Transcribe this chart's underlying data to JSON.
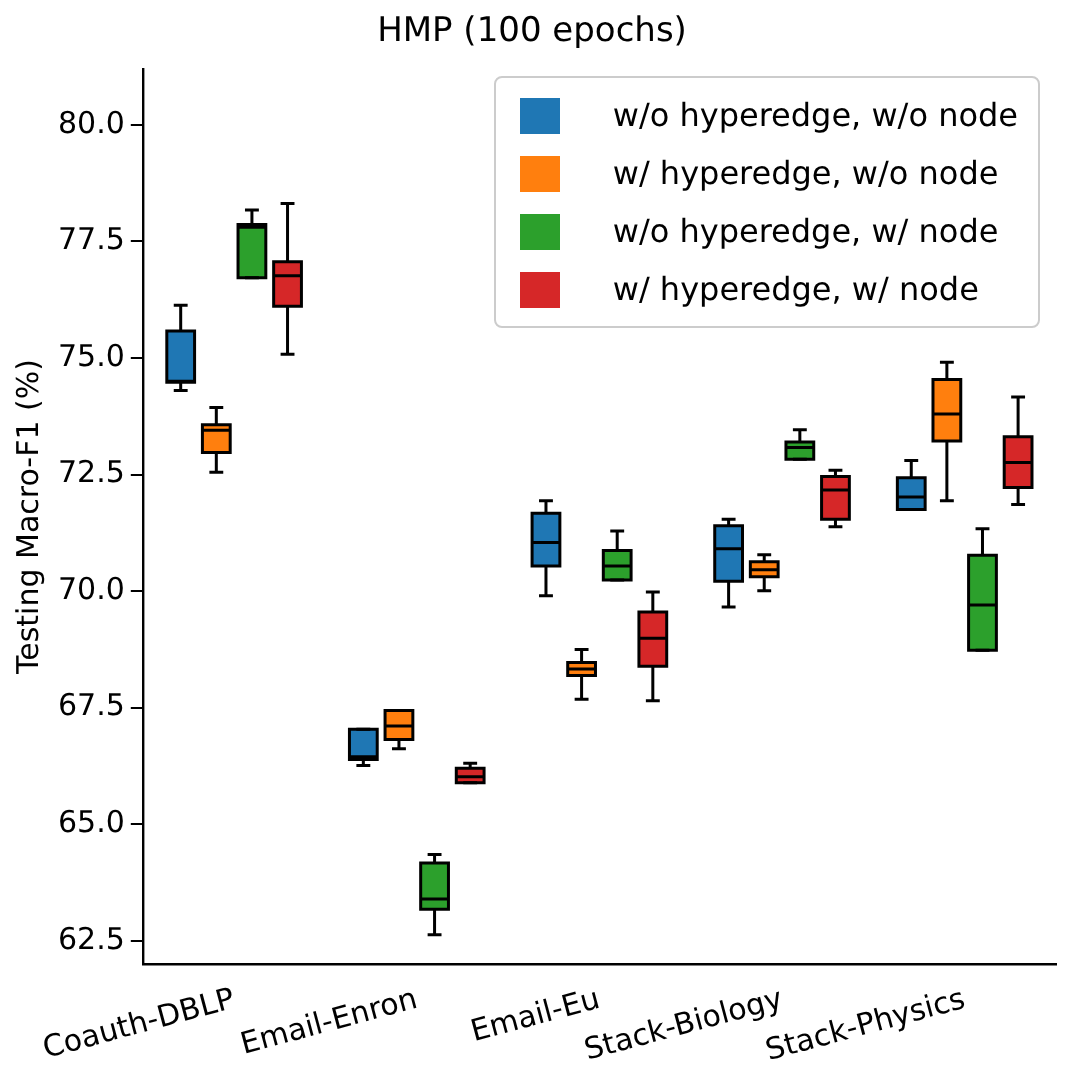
{
  "chart_data": {
    "type": "box",
    "title": "HMP (100 epochs)",
    "ylabel": "Testing Macro-F1 (%)",
    "categories": [
      "Coauth-DBLP",
      "Email-Enron",
      "Email-Eu",
      "Stack-Biology",
      "Stack-Physics"
    ],
    "ylim": [
      62.0,
      81.2
    ],
    "yticks": [
      {
        "value": 62.5,
        "label": "62.5"
      },
      {
        "value": 65,
        "label": "65.0"
      },
      {
        "value": 67.5,
        "label": "67.5"
      },
      {
        "value": 70,
        "label": "70.0"
      },
      {
        "value": 72.5,
        "label": "72.5"
      },
      {
        "value": 75,
        "label": "75.0"
      },
      {
        "value": 77.5,
        "label": "77.5"
      },
      {
        "value": 80,
        "label": "80.0"
      }
    ],
    "grid": false,
    "legend": "top right",
    "series": [
      {
        "name": "w/o hyperedge, w/o node",
        "color": "#1f77b4",
        "boxes": [
          {
            "low": 74.3,
            "q1": 74.48,
            "median": 74.5,
            "q3": 75.58,
            "high": 76.13
          },
          {
            "low": 66.26,
            "q1": 66.39,
            "median": 66.45,
            "q3": 67.04,
            "high": 67.04
          },
          {
            "low": 69.9,
            "q1": 70.54,
            "median": 71.04,
            "q3": 71.67,
            "high": 71.94
          },
          {
            "low": 69.66,
            "q1": 70.21,
            "median": 70.91,
            "q3": 71.4,
            "high": 71.54
          },
          {
            "low": 71.75,
            "q1": 71.75,
            "median": 72.02,
            "q3": 72.43,
            "high": 72.8
          }
        ]
      },
      {
        "name": "w/ hyperedge, w/o node",
        "color": "#ff7f0e",
        "boxes": [
          {
            "low": 72.55,
            "q1": 72.97,
            "median": 73.45,
            "q3": 73.57,
            "high": 73.94
          },
          {
            "low": 66.62,
            "q1": 66.82,
            "median": 67.11,
            "q3": 67.44,
            "high": 67.44
          },
          {
            "low": 67.68,
            "q1": 68.19,
            "median": 68.33,
            "q3": 68.47,
            "high": 68.75
          },
          {
            "low": 70.01,
            "q1": 70.31,
            "median": 70.46,
            "q3": 70.63,
            "high": 70.78
          },
          {
            "low": 71.94,
            "q1": 73.22,
            "median": 73.8,
            "q3": 74.54,
            "high": 74.91
          }
        ]
      },
      {
        "name": "w/o hyperedge, w/ node",
        "color": "#2ca02c",
        "boxes": [
          {
            "low": 76.72,
            "q1": 76.72,
            "median": 77.8,
            "q3": 77.86,
            "high": 78.17
          },
          {
            "low": 62.63,
            "q1": 63.18,
            "median": 63.4,
            "q3": 64.17,
            "high": 64.35
          },
          {
            "low": 70.24,
            "q1": 70.24,
            "median": 70.54,
            "q3": 70.87,
            "high": 71.29
          },
          {
            "low": 72.83,
            "q1": 72.83,
            "median": 73.08,
            "q3": 73.2,
            "high": 73.46
          },
          {
            "low": 68.73,
            "q1": 68.73,
            "median": 69.7,
            "q3": 70.77,
            "high": 71.34
          }
        ]
      },
      {
        "name": "w/ hyperedge, w/ node",
        "color": "#d62728",
        "boxes": [
          {
            "low": 75.08,
            "q1": 76.11,
            "median": 76.76,
            "q3": 77.06,
            "high": 78.31
          },
          {
            "low": 65.89,
            "q1": 65.89,
            "median": 66.02,
            "q3": 66.2,
            "high": 66.31
          },
          {
            "low": 67.65,
            "q1": 68.39,
            "median": 68.99,
            "q3": 69.55,
            "high": 69.98
          },
          {
            "low": 71.38,
            "q1": 71.54,
            "median": 72.17,
            "q3": 72.46,
            "high": 72.59
          },
          {
            "low": 71.86,
            "q1": 72.22,
            "median": 72.76,
            "q3": 73.31,
            "high": 74.16
          }
        ]
      }
    ]
  }
}
